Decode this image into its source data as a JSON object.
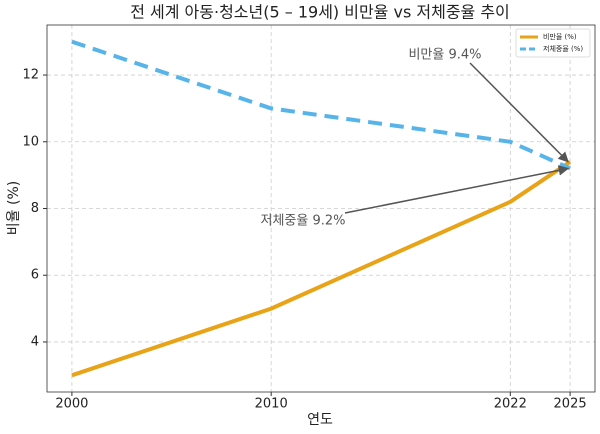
{
  "chart_data": {
    "type": "line",
    "title": "전 세계 아동·청소년(5 – 19세) 비만율 vs 저체중율 추이",
    "x_label": "연도",
    "y_label": "비율 (%)",
    "x": [
      2000,
      2010,
      2022,
      2025
    ],
    "series": [
      {
        "name": "비만율 (%)",
        "color": "#e8a317",
        "dash": false,
        "values": [
          3,
          5,
          8.2,
          9.4
        ]
      },
      {
        "name": "저체중율 (%)",
        "color": "#56b4e9",
        "dash": true,
        "values": [
          13,
          11,
          10,
          9.2
        ]
      }
    ],
    "annotations": [
      {
        "text": "비만율 9.4%",
        "series": 0
      },
      {
        "text": "저체중율 9.2%",
        "series": 1
      }
    ],
    "xlim": [
      1998.75,
      2026.25
    ],
    "xticks": [
      2000,
      2010,
      2022,
      2025
    ],
    "ylim": [
      2.5,
      13.5
    ],
    "yticks": [
      4,
      6,
      8,
      10,
      12
    ],
    "grid": true,
    "legend": "upper right"
  }
}
